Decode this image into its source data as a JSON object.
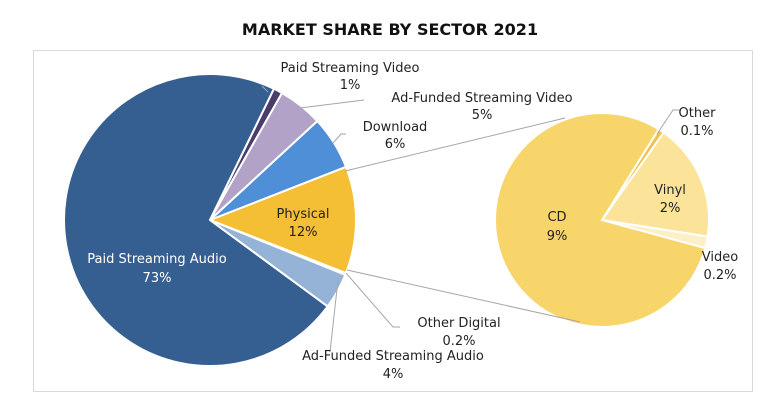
{
  "chart_data": {
    "type": "pie",
    "title": "MARKET SHARE BY SECTOR 2021",
    "main_pie": [
      {
        "label": "Physical",
        "value": 12,
        "value_label": "12%",
        "color": "#f4be35"
      },
      {
        "label": "Download",
        "value": 6,
        "value_label": "6%",
        "color": "#4f8fd8"
      },
      {
        "label": "Ad-Funded Streaming Video",
        "value": 5,
        "value_label": "5%",
        "color": "#b3a2c7"
      },
      {
        "label": "Paid Streaming Video",
        "value": 1,
        "value_label": "1%",
        "color": "#4b3d6b"
      },
      {
        "label": "Paid Streaming Audio",
        "value": 73,
        "value_label": "73%",
        "color": "#365f91"
      },
      {
        "label": "Ad-Funded Streaming Audio",
        "value": 4,
        "value_label": "4%",
        "color": "#95b3d7"
      },
      {
        "label": "Other Digital",
        "value": 0.2,
        "value_label": "0.2%",
        "color": "#c6d9f0"
      }
    ],
    "breakdown_of": "Physical",
    "secondary_pie": [
      {
        "label": "Other",
        "value": 0.1,
        "value_label": "0.1%",
        "color": "#f0c24a"
      },
      {
        "label": "Vinyl",
        "value": 2,
        "value_label": "2%",
        "color": "#fbe49a"
      },
      {
        "label": "Video",
        "value": 0.2,
        "value_label": "0.2%",
        "color": "#fdf0c8"
      },
      {
        "label": "CD",
        "value": 9,
        "value_label": "9%",
        "color": "#f8d56a"
      }
    ]
  }
}
